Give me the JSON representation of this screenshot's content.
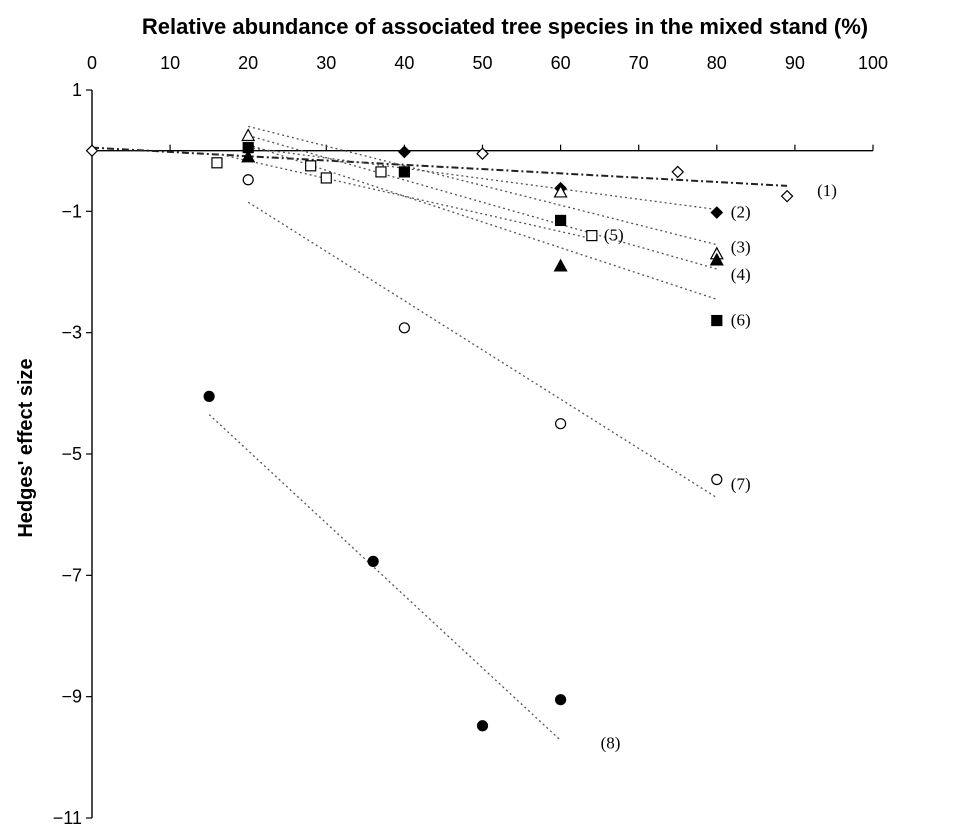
{
  "chart_data": {
    "type": "scatter",
    "title": "",
    "xlabel": "Relative abundance of associated tree species in the mixed stand (%)",
    "ylabel": "Hedges' effect size",
    "xlim": [
      0,
      100
    ],
    "ylim": [
      -11,
      1
    ],
    "x_axis_position": "top",
    "xticks": [
      0,
      10,
      20,
      30,
      40,
      50,
      60,
      70,
      80,
      90,
      100
    ],
    "yticks": [
      1,
      -1,
      -3,
      -5,
      -7,
      -9,
      -11
    ],
    "grid": false,
    "series": [
      {
        "name": "(1)",
        "marker": "open-diamond",
        "points": [
          [
            0,
            0.0
          ],
          [
            50,
            -0.05
          ],
          [
            75,
            -0.35
          ],
          [
            89,
            -0.75
          ]
        ],
        "trend": [
          [
            0,
            0.05
          ],
          [
            89,
            -0.58
          ]
        ],
        "trend_style": "dash-dot"
      },
      {
        "name": "(2)",
        "marker": "filled-diamond",
        "points": [
          [
            40,
            -0.02
          ],
          [
            60,
            -0.62
          ],
          [
            80,
            -1.02
          ]
        ],
        "trend": [
          [
            20,
            0.05
          ],
          [
            80,
            -0.97
          ]
        ],
        "trend_style": "dotted"
      },
      {
        "name": "(3)",
        "marker": "open-triangle",
        "points": [
          [
            20,
            0.25
          ],
          [
            60,
            -0.68
          ],
          [
            80,
            -1.7
          ]
        ],
        "trend": [
          [
            20,
            0.4
          ],
          [
            80,
            -1.55
          ]
        ],
        "trend_style": "dotted"
      },
      {
        "name": "(4)",
        "marker": "filled-triangle",
        "points": [
          [
            20,
            -0.1
          ],
          [
            60,
            -1.9
          ],
          [
            80,
            -1.8
          ]
        ],
        "trend": [
          [
            20,
            0.25
          ],
          [
            80,
            -1.95
          ]
        ],
        "trend_style": "dotted"
      },
      {
        "name": "(5)",
        "marker": "open-square",
        "points": [
          [
            16,
            -0.2
          ],
          [
            28,
            -0.25
          ],
          [
            30,
            -0.45
          ],
          [
            37,
            -0.35
          ],
          [
            64,
            -1.4
          ]
        ],
        "trend": [
          [
            16,
            -0.05
          ],
          [
            64,
            -1.45
          ]
        ],
        "trend_style": "dotted"
      },
      {
        "name": "(6)",
        "marker": "filled-square",
        "points": [
          [
            20,
            0.05
          ],
          [
            40,
            -0.35
          ],
          [
            60,
            -1.15
          ],
          [
            80,
            -2.8
          ]
        ],
        "trend": [
          [
            20,
            0.1
          ],
          [
            80,
            -2.45
          ]
        ],
        "trend_style": "dotted"
      },
      {
        "name": "(7)",
        "marker": "open-circle",
        "points": [
          [
            20,
            -0.48
          ],
          [
            40,
            -2.92
          ],
          [
            60,
            -4.5
          ],
          [
            80,
            -5.42
          ]
        ],
        "trend": [
          [
            20,
            -0.85
          ],
          [
            80,
            -5.72
          ]
        ],
        "trend_style": "dotted"
      },
      {
        "name": "(8)",
        "marker": "filled-circle",
        "points": [
          [
            15,
            -4.05
          ],
          [
            36,
            -6.77
          ],
          [
            50,
            -9.48
          ],
          [
            60,
            -9.05
          ]
        ],
        "trend": [
          [
            15,
            -4.35
          ],
          [
            60,
            -9.72
          ]
        ],
        "trend_style": "dotted"
      }
    ]
  }
}
